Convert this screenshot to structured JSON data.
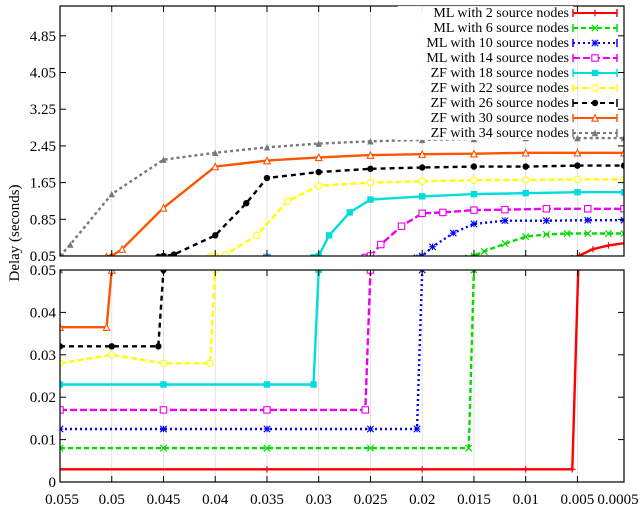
{
  "chart_data": {
    "type": "line",
    "ylabel": "Delay (seconds)",
    "xlim": [
      0.055,
      0.0005
    ],
    "x_ticks": [
      "0.055",
      "0.05",
      "0.045",
      "0.04",
      "0.035",
      "0.03",
      "0.025",
      "0.02",
      "0.015",
      "0.01",
      "0.005",
      "0.0005"
    ],
    "x_tick_values": [
      0.055,
      0.05,
      0.045,
      0.04,
      0.035,
      0.03,
      0.025,
      0.02,
      0.015,
      0.01,
      0.005,
      0.0005
    ],
    "legend_position": "top-right",
    "panels": [
      {
        "name": "top",
        "ylim": [
          0.05,
          5.5
        ],
        "y_ticks": [
          "0.05",
          "0.85",
          "1.65",
          "2.45",
          "3.25",
          "4.05",
          "4.85"
        ],
        "y_tick_values": [
          0.05,
          0.85,
          1.65,
          2.45,
          3.25,
          4.05,
          4.85
        ]
      },
      {
        "name": "bottom",
        "ylim": [
          0,
          0.05
        ],
        "y_ticks": [
          "0",
          "0.01",
          "0.02",
          "0.03",
          "0.04",
          "0.05"
        ],
        "y_tick_values": [
          0,
          0.01,
          0.02,
          0.03,
          0.04,
          0.05
        ]
      }
    ],
    "series": [
      {
        "name": "ML with 2 source nodes",
        "color": "#ff0000",
        "marker": "plus",
        "dash": "",
        "points": [
          [
            0.055,
            0.003
          ],
          [
            0.035,
            0.003
          ],
          [
            0.02,
            0.003
          ],
          [
            0.01,
            0.003
          ],
          [
            0.0055,
            0.003
          ],
          [
            0.0048,
            0.06
          ],
          [
            0.0035,
            0.2
          ],
          [
            0.002,
            0.28
          ],
          [
            0.0005,
            0.33
          ]
        ]
      },
      {
        "name": "ML with 6 source nodes",
        "color": "#00dd00",
        "marker": "cross",
        "dash": "5,3",
        "points": [
          [
            0.055,
            0.008
          ],
          [
            0.045,
            0.008
          ],
          [
            0.035,
            0.008
          ],
          [
            0.025,
            0.008
          ],
          [
            0.0155,
            0.008
          ],
          [
            0.015,
            0.05
          ],
          [
            0.014,
            0.15
          ],
          [
            0.012,
            0.32
          ],
          [
            0.01,
            0.47
          ],
          [
            0.008,
            0.52
          ],
          [
            0.006,
            0.54
          ],
          [
            0.004,
            0.54
          ],
          [
            0.002,
            0.54
          ],
          [
            0.0005,
            0.54
          ]
        ]
      },
      {
        "name": "ML with 10 source nodes",
        "color": "#0000ff",
        "marker": "star",
        "dash": "2,3",
        "points": [
          [
            0.055,
            0.0125
          ],
          [
            0.045,
            0.0125
          ],
          [
            0.035,
            0.0125
          ],
          [
            0.025,
            0.0125
          ],
          [
            0.0205,
            0.0125
          ],
          [
            0.02,
            0.05
          ],
          [
            0.019,
            0.25
          ],
          [
            0.017,
            0.55
          ],
          [
            0.015,
            0.75
          ],
          [
            0.012,
            0.82
          ],
          [
            0.008,
            0.82
          ],
          [
            0.004,
            0.83
          ],
          [
            0.0005,
            0.83
          ]
        ]
      },
      {
        "name": "ML with 14 source nodes",
        "color": "#ee00ee",
        "marker": "square",
        "dash": "7,3",
        "points": [
          [
            0.055,
            0.017
          ],
          [
            0.045,
            0.017
          ],
          [
            0.035,
            0.017
          ],
          [
            0.0255,
            0.017
          ],
          [
            0.025,
            0.05
          ],
          [
            0.024,
            0.3
          ],
          [
            0.022,
            0.7
          ],
          [
            0.02,
            0.98
          ],
          [
            0.018,
            1.0
          ],
          [
            0.015,
            1.05
          ],
          [
            0.012,
            1.06
          ],
          [
            0.008,
            1.08
          ],
          [
            0.004,
            1.08
          ],
          [
            0.0005,
            1.08
          ]
        ]
      },
      {
        "name": "ZF with 18 source nodes",
        "color": "#00dddd",
        "marker": "fsquare",
        "dash": "",
        "points": [
          [
            0.055,
            0.023
          ],
          [
            0.045,
            0.023
          ],
          [
            0.035,
            0.023
          ],
          [
            0.0305,
            0.023
          ],
          [
            0.03,
            0.05
          ],
          [
            0.029,
            0.5
          ],
          [
            0.027,
            1.0
          ],
          [
            0.025,
            1.28
          ],
          [
            0.02,
            1.35
          ],
          [
            0.015,
            1.4
          ],
          [
            0.01,
            1.42
          ],
          [
            0.005,
            1.44
          ],
          [
            0.0005,
            1.44
          ]
        ]
      },
      {
        "name": "ZF with 22 source nodes",
        "color": "#ffff00",
        "marker": "circle",
        "dash": "6,3",
        "points": [
          [
            0.055,
            0.028
          ],
          [
            0.05,
            0.03
          ],
          [
            0.045,
            0.028
          ],
          [
            0.0405,
            0.028
          ],
          [
            0.04,
            0.05
          ],
          [
            0.039,
            0.08
          ],
          [
            0.036,
            0.5
          ],
          [
            0.033,
            1.25
          ],
          [
            0.03,
            1.58
          ],
          [
            0.025,
            1.65
          ],
          [
            0.02,
            1.68
          ],
          [
            0.015,
            1.7
          ],
          [
            0.01,
            1.71
          ],
          [
            0.005,
            1.72
          ],
          [
            0.0005,
            1.72
          ]
        ]
      },
      {
        "name": "ZF with 26 source nodes",
        "color": "#000000",
        "marker": "fcircle",
        "dash": "5,4",
        "points": [
          [
            0.055,
            0.032
          ],
          [
            0.05,
            0.032
          ],
          [
            0.0455,
            0.032
          ],
          [
            0.045,
            0.05
          ],
          [
            0.044,
            0.08
          ],
          [
            0.04,
            0.5
          ],
          [
            0.037,
            1.2
          ],
          [
            0.035,
            1.75
          ],
          [
            0.03,
            1.88
          ],
          [
            0.025,
            1.95
          ],
          [
            0.02,
            1.98
          ],
          [
            0.015,
            2.0
          ],
          [
            0.01,
            2.0
          ],
          [
            0.005,
            2.02
          ],
          [
            0.0005,
            2.02
          ]
        ]
      },
      {
        "name": "ZF with 30 source nodes",
        "color": "#ff5500",
        "marker": "triangle",
        "dash": "",
        "points": [
          [
            0.055,
            0.0365
          ],
          [
            0.0505,
            0.0365
          ],
          [
            0.05,
            0.05
          ],
          [
            0.049,
            0.2
          ],
          [
            0.045,
            1.1
          ],
          [
            0.04,
            2.0
          ],
          [
            0.035,
            2.13
          ],
          [
            0.03,
            2.2
          ],
          [
            0.025,
            2.25
          ],
          [
            0.02,
            2.27
          ],
          [
            0.015,
            2.28
          ],
          [
            0.01,
            2.3
          ],
          [
            0.005,
            2.3
          ],
          [
            0.0005,
            2.3
          ]
        ]
      },
      {
        "name": "ZF with 34 source nodes",
        "color": "#777777",
        "marker": "ftriangle",
        "dash": "3,3",
        "points": [
          [
            0.055,
            0.05
          ],
          [
            0.054,
            0.3
          ],
          [
            0.05,
            1.4
          ],
          [
            0.045,
            2.15
          ],
          [
            0.04,
            2.3
          ],
          [
            0.035,
            2.42
          ],
          [
            0.03,
            2.5
          ],
          [
            0.025,
            2.55
          ],
          [
            0.02,
            2.58
          ],
          [
            0.015,
            2.6
          ],
          [
            0.01,
            2.62
          ],
          [
            0.005,
            2.62
          ],
          [
            0.0005,
            2.62
          ]
        ]
      }
    ]
  }
}
